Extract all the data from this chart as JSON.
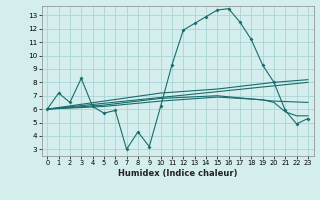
{
  "xlabel": "Humidex (Indice chaleur)",
  "xlim": [
    -0.5,
    23.5
  ],
  "ylim": [
    2.5,
    13.7
  ],
  "yticks": [
    3,
    4,
    5,
    6,
    7,
    8,
    9,
    10,
    11,
    12,
    13
  ],
  "xticks": [
    0,
    1,
    2,
    3,
    4,
    5,
    6,
    7,
    8,
    9,
    10,
    11,
    12,
    13,
    14,
    15,
    16,
    17,
    18,
    19,
    20,
    21,
    22,
    23
  ],
  "background_color": "#d4eeee",
  "grid_color": "#aad4d4",
  "line_color": "#1a6b6b",
  "curve_x": [
    0,
    1,
    2,
    3,
    4,
    5,
    6,
    7,
    8,
    9,
    10,
    11,
    12,
    13,
    14,
    15,
    16,
    17,
    18,
    19,
    20,
    21,
    22,
    23
  ],
  "curve_y": [
    6.0,
    7.2,
    6.5,
    8.3,
    6.2,
    5.7,
    5.9,
    3.0,
    4.3,
    3.2,
    6.2,
    9.3,
    11.9,
    12.4,
    12.9,
    13.4,
    13.5,
    12.5,
    11.2,
    9.3,
    8.0,
    5.9,
    4.9,
    5.3
  ],
  "line1_x": [
    0,
    23
  ],
  "line1_y": [
    6.0,
    8.0
  ],
  "line2_x": [
    0,
    10,
    15,
    20,
    23
  ],
  "line2_y": [
    6.0,
    7.2,
    7.5,
    8.0,
    8.2
  ],
  "line3_x": [
    0,
    5,
    10,
    15,
    20,
    23
  ],
  "line3_y": [
    6.0,
    6.3,
    6.8,
    7.0,
    6.6,
    6.5
  ],
  "line4_x": [
    0,
    5,
    10,
    15,
    19,
    20,
    21,
    22,
    23
  ],
  "line4_y": [
    6.0,
    6.2,
    6.6,
    6.9,
    6.7,
    6.5,
    5.8,
    5.5,
    5.5
  ]
}
